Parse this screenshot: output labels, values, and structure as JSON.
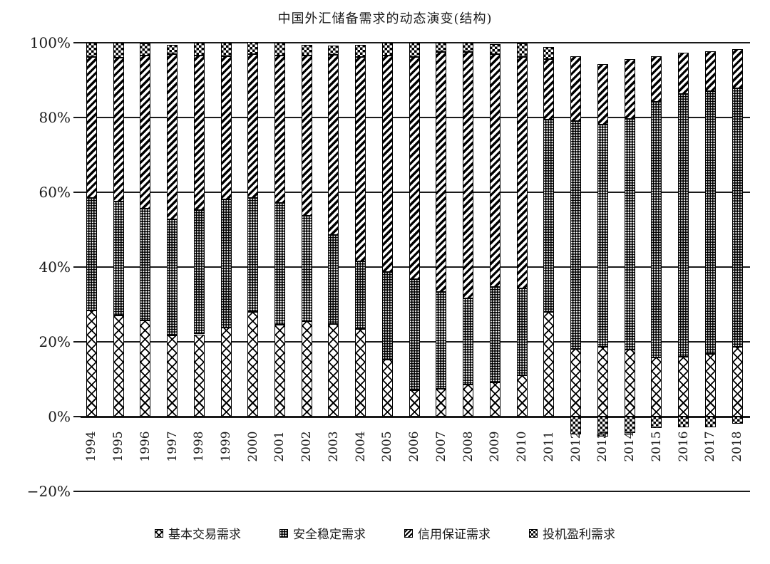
{
  "title": "中国外汇储备需求的动态演变(结构)",
  "colors": {
    "ink": "#1a1a1a",
    "background": "#ffffff"
  },
  "y_axis": {
    "ticks": [
      "100%",
      "80%",
      "60%",
      "40%",
      "20%",
      "0%",
      "−20%"
    ],
    "values": [
      100,
      80,
      60,
      40,
      20,
      0,
      -20
    ]
  },
  "legend": {
    "items": [
      {
        "label": "基本交易需求",
        "pattern": "basic"
      },
      {
        "label": "安全稳定需求",
        "pattern": "security"
      },
      {
        "label": "信用保证需求",
        "pattern": "credit"
      },
      {
        "label": "投机盈利需求",
        "pattern": "spec"
      }
    ]
  },
  "chart_data": {
    "type": "bar",
    "subtype": "stacked-column",
    "title": "中国外汇储备需求的动态演变(结构)",
    "xlabel": "",
    "ylabel": "",
    "unit": "percent",
    "ylim": [
      -20,
      100
    ],
    "grid": true,
    "legend_position": "bottom",
    "categories": [
      1994,
      1995,
      1996,
      1997,
      1998,
      1999,
      2000,
      2001,
      2002,
      2003,
      2004,
      2005,
      2006,
      2007,
      2008,
      2009,
      2010,
      2011,
      2012,
      2013,
      2014,
      2015,
      2016,
      2017,
      2018
    ],
    "series": [
      {
        "name": "基本交易需求",
        "pattern": "basic",
        "values": [
          28.3,
          27.0,
          25.8,
          21.7,
          22.0,
          23.9,
          28.0,
          24.5,
          25.5,
          24.8,
          23.5,
          15.2,
          7.0,
          7.4,
          8.6,
          9.2,
          11.1,
          28.0,
          18.1,
          18.7,
          17.9,
          15.9,
          16.0,
          16.8,
          18.7
        ]
      },
      {
        "name": "安全稳定需求",
        "pattern": "security",
        "values": [
          30.1,
          30.5,
          29.8,
          31.0,
          33.2,
          34.2,
          30.4,
          32.6,
          28.3,
          23.8,
          18.1,
          23.5,
          29.8,
          25.9,
          23.1,
          25.4,
          23.2,
          51.4,
          60.9,
          59.4,
          61.8,
          68.2,
          70.3,
          70.2,
          69.2
        ]
      },
      {
        "name": "信用保证需求",
        "pattern": "credit",
        "values": [
          37.8,
          38.5,
          41.0,
          44.3,
          41.4,
          38.3,
          38.6,
          39.4,
          42.7,
          48.1,
          54.5,
          57.8,
          59.4,
          64.2,
          65.8,
          62.3,
          61.9,
          16.2,
          17.3,
          16.2,
          15.9,
          12.2,
          11.0,
          10.7,
          10.3
        ]
      },
      {
        "name": "投机盈利需求",
        "pattern": "spec",
        "values": [
          3.8,
          4.0,
          3.2,
          2.5,
          3.4,
          3.6,
          3.2,
          3.5,
          3.0,
          2.5,
          3.3,
          3.5,
          3.8,
          2.5,
          2.5,
          2.8,
          3.6,
          3.2,
          -4.7,
          -5.3,
          -4.4,
          -3.1,
          -2.8,
          -2.9,
          -1.9
        ]
      }
    ]
  }
}
